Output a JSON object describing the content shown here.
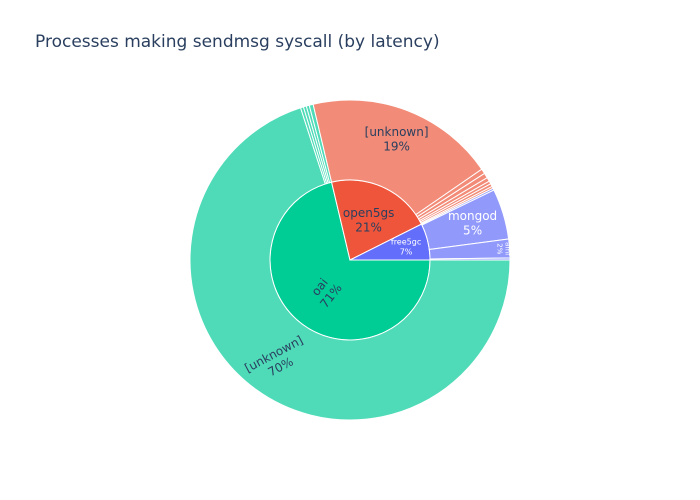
{
  "chart_data": {
    "type": "sunburst",
    "title": "Processes making sendmsg syscall (by latency)",
    "values_unit": "percent of total",
    "colors": {
      "oai": "#00cc96",
      "oai_light": "#4fdbb8",
      "open5gs": "#ef553b",
      "open5gs_light": "#f28b77",
      "free5gc": "#636efa",
      "free5gc_light": "#9199fb"
    },
    "series": [
      {
        "name": "oai",
        "label": "oai",
        "percent_text": "71%",
        "value": 71.3,
        "color_key": "oai",
        "children": [
          {
            "label": "[unknown]",
            "percent_text": "70%",
            "value": 70.0,
            "color_key": "oai_light"
          },
          {
            "label": "",
            "value": 0.3,
            "color_key": "oai_light"
          },
          {
            "label": "",
            "value": 0.3,
            "color_key": "oai_light"
          },
          {
            "label": "",
            "value": 0.3,
            "color_key": "oai_light"
          },
          {
            "label": "",
            "value": 0.4,
            "color_key": "oai_light"
          }
        ]
      },
      {
        "name": "open5gs",
        "label": "open5gs",
        "percent_text": "21%",
        "value": 21.3,
        "color_key": "open5gs",
        "children": [
          {
            "label": "[unknown]",
            "percent_text": "19%",
            "value": 19.1,
            "color_key": "open5gs_light"
          },
          {
            "label": "",
            "value": 0.5,
            "color_key": "open5gs_light"
          },
          {
            "label": "",
            "value": 0.5,
            "color_key": "open5gs_light"
          },
          {
            "label": "",
            "value": 0.4,
            "color_key": "open5gs_light"
          },
          {
            "label": "",
            "value": 0.3,
            "color_key": "open5gs_light"
          },
          {
            "label": "",
            "value": 0.3,
            "color_key": "open5gs_light"
          },
          {
            "label": "",
            "value": 0.2,
            "color_key": "open5gs_light"
          }
        ]
      },
      {
        "name": "free5gc",
        "label": "free5gc",
        "percent_text": "7%",
        "value": 7.4,
        "color_key": "free5gc",
        "children": [
          {
            "label": "",
            "value": 0.2,
            "color_key": "free5gc_light"
          },
          {
            "label": "mongod",
            "percent_text": "5%",
            "value": 5.1,
            "color_key": "free5gc_light"
          },
          {
            "label": "amf",
            "percent_text": "2%",
            "value": 1.9,
            "color_key": "free5gc_light"
          },
          {
            "label": "",
            "value": 0.2,
            "color_key": "free5gc_light"
          }
        ]
      }
    ]
  }
}
